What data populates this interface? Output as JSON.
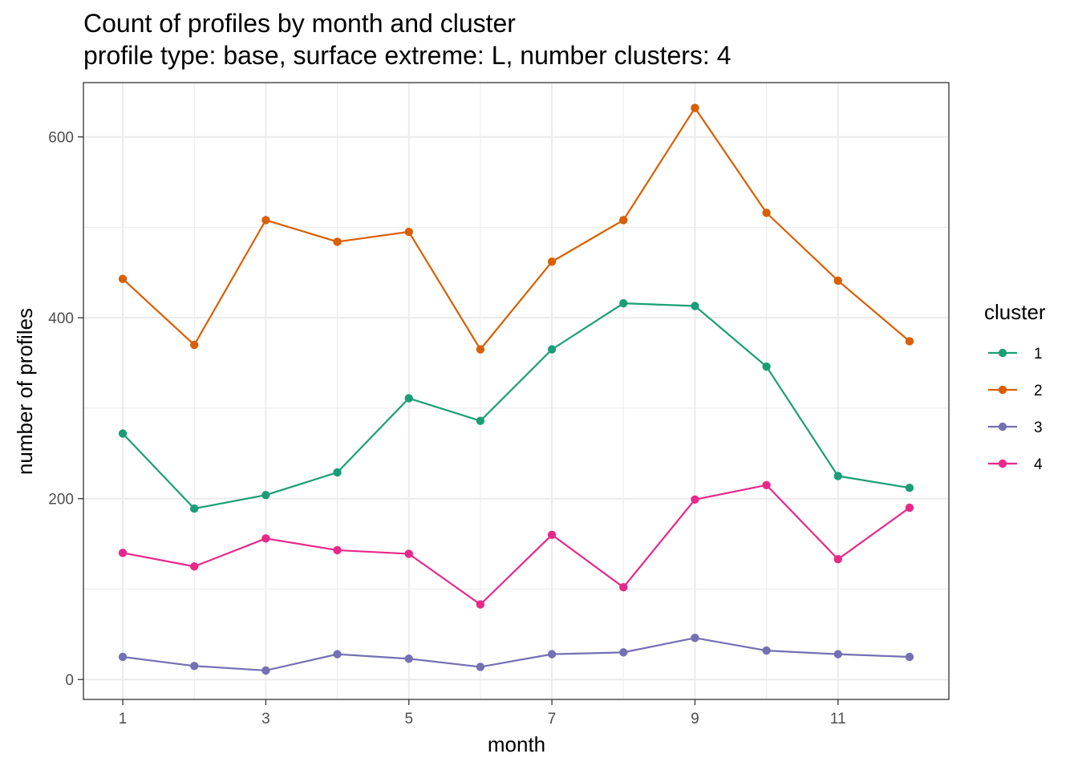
{
  "chart_data": {
    "type": "line",
    "title": "Count of profiles by month and cluster",
    "subtitle": "profile type: base, surface extreme: L, number clusters: 4",
    "xlabel": "month",
    "ylabel": "number of profiles",
    "x": [
      1,
      2,
      3,
      4,
      5,
      6,
      7,
      8,
      9,
      10,
      11,
      12
    ],
    "xticks": [
      1,
      3,
      5,
      7,
      9,
      11
    ],
    "xtick_labels": [
      "1",
      "3",
      "5",
      "7",
      "9",
      "11"
    ],
    "yticks": [
      0,
      200,
      400,
      600
    ],
    "ytick_labels": [
      "0",
      "200",
      "400",
      "600"
    ],
    "xlim": [
      0.45,
      12.55
    ],
    "ylim": [
      -22,
      660
    ],
    "grid": true,
    "legend_title": "cluster",
    "legend_position": "right",
    "series": [
      {
        "name": "1",
        "color": "#1b9e77",
        "values": [
          272,
          189,
          204,
          229,
          311,
          286,
          365,
          416,
          413,
          346,
          225,
          212
        ]
      },
      {
        "name": "2",
        "color": "#d95f02",
        "values": [
          443,
          370,
          508,
          484,
          495,
          365,
          462,
          508,
          632,
          516,
          441,
          374
        ]
      },
      {
        "name": "3",
        "color": "#7570b3",
        "values": [
          25,
          15,
          10,
          28,
          23,
          14,
          28,
          30,
          46,
          32,
          28,
          25
        ]
      },
      {
        "name": "4",
        "color": "#e7298a",
        "values": [
          140,
          125,
          156,
          143,
          139,
          83,
          160,
          102,
          199,
          215,
          133,
          190
        ]
      }
    ]
  }
}
